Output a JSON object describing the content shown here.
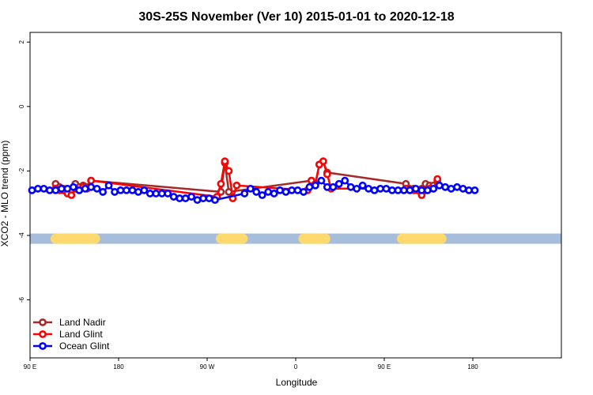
{
  "chart_data": {
    "type": "scatter",
    "title": "30S-25S November (Ver 10)   2015-01-01 to 2020-12-18",
    "xlabel": "Longitude",
    "ylabel": "XCO2 - MLO trend (ppm)",
    "xlim": [
      -90,
      180
    ],
    "ylim": [
      -7.8,
      2.3
    ],
    "x_ticks": [
      {
        "value": -90,
        "label": "90 E"
      },
      {
        "value": -45,
        "label": "180"
      },
      {
        "value": 0,
        "label": "90 W"
      },
      {
        "value": 45,
        "label": "0"
      },
      {
        "value": 90,
        "label": "90 E"
      },
      {
        "value": 135,
        "label": "180"
      }
    ],
    "y_ticks": [
      {
        "value": 2,
        "label": "2"
      },
      {
        "value": 0,
        "label": "0"
      },
      {
        "value": -2,
        "label": "-2"
      },
      {
        "value": -4,
        "label": "-4"
      },
      {
        "value": -6,
        "label": "-6"
      }
    ],
    "grid": false,
    "legend_position": "bottom-left",
    "land_ocean_band": {
      "y": -4.1,
      "ocean_color": "#a6bddb",
      "land_color": "#fdd96e",
      "land_segments": [
        [
          -77,
          -57
        ],
        [
          7,
          18
        ],
        [
          49,
          60
        ],
        [
          99,
          119
        ]
      ]
    },
    "series": [
      {
        "name": "Land Nadir",
        "color": "#a52a2a",
        "x": [
          -77,
          -75,
          -73,
          -71,
          -69,
          -67,
          -65,
          -63,
          -61,
          -59,
          7,
          9,
          11,
          53,
          55,
          57,
          59,
          61,
          101,
          103,
          105,
          107,
          109,
          111,
          113,
          115,
          117
        ],
        "y": [
          -2.4,
          -2.5,
          -2.55,
          -2.55,
          -2.6,
          -2.4,
          -2.5,
          -2.45,
          -2.5,
          -2.3,
          -2.65,
          -1.75,
          -2.65,
          -2.3,
          -2.4,
          -1.8,
          -1.7,
          -2.05,
          -2.4,
          -2.55,
          -2.55,
          -2.6,
          -2.55,
          -2.4,
          -2.45,
          -2.45,
          -2.3
        ]
      },
      {
        "name": "Land Glint",
        "color": "#ff0000",
        "x": [
          -77,
          -75,
          -73,
          -71,
          -69,
          -67,
          -65,
          -63,
          -61,
          -59,
          5,
          7,
          9,
          11,
          13,
          15,
          51,
          53,
          55,
          57,
          59,
          61,
          63,
          101,
          103,
          105,
          107,
          109,
          111,
          113,
          115,
          117
        ],
        "y": [
          -2.55,
          -2.6,
          -2.6,
          -2.7,
          -2.75,
          -2.55,
          -2.6,
          -2.5,
          -2.55,
          -2.3,
          -2.8,
          -2.4,
          -1.7,
          -2.0,
          -2.85,
          -2.45,
          -2.6,
          -2.3,
          -2.4,
          -1.8,
          -1.7,
          -2.1,
          -2.55,
          -2.55,
          -2.6,
          -2.6,
          -2.6,
          -2.75,
          -2.6,
          -2.55,
          -2.55,
          -2.25
        ]
      },
      {
        "name": "Ocean Glint",
        "color": "#0000ff",
        "x": [
          -89,
          -86,
          -83,
          -80,
          -77,
          -74,
          -71,
          -68,
          -65,
          -62,
          -59,
          -56,
          -53,
          -50,
          -47,
          -44,
          -41,
          -38,
          -35,
          -32,
          -29,
          -26,
          -23,
          -20,
          -17,
          -14,
          -11,
          -8,
          -5,
          -2,
          1,
          4,
          19,
          22,
          25,
          28,
          31,
          34,
          37,
          40,
          43,
          46,
          49,
          52,
          55,
          58,
          61,
          64,
          67,
          70,
          73,
          76,
          79,
          82,
          85,
          88,
          91,
          94,
          97,
          100,
          103,
          106,
          109,
          112,
          115,
          118,
          121,
          124,
          127,
          130,
          133,
          136
        ],
        "y": [
          -2.6,
          -2.55,
          -2.55,
          -2.6,
          -2.6,
          -2.55,
          -2.55,
          -2.5,
          -2.6,
          -2.55,
          -2.5,
          -2.55,
          -2.65,
          -2.45,
          -2.65,
          -2.6,
          -2.6,
          -2.6,
          -2.65,
          -2.6,
          -2.7,
          -2.7,
          -2.7,
          -2.7,
          -2.8,
          -2.85,
          -2.85,
          -2.8,
          -2.9,
          -2.85,
          -2.85,
          -2.9,
          -2.7,
          -2.55,
          -2.65,
          -2.75,
          -2.65,
          -2.7,
          -2.6,
          -2.65,
          -2.6,
          -2.6,
          -2.65,
          -2.5,
          -2.45,
          -2.3,
          -2.5,
          -2.5,
          -2.4,
          -2.3,
          -2.5,
          -2.55,
          -2.45,
          -2.55,
          -2.6,
          -2.55,
          -2.55,
          -2.6,
          -2.6,
          -2.6,
          -2.6,
          -2.55,
          -2.6,
          -2.6,
          -2.55,
          -2.45,
          -2.5,
          -2.55,
          -2.5,
          -2.55,
          -2.6,
          -2.6
        ]
      }
    ]
  }
}
